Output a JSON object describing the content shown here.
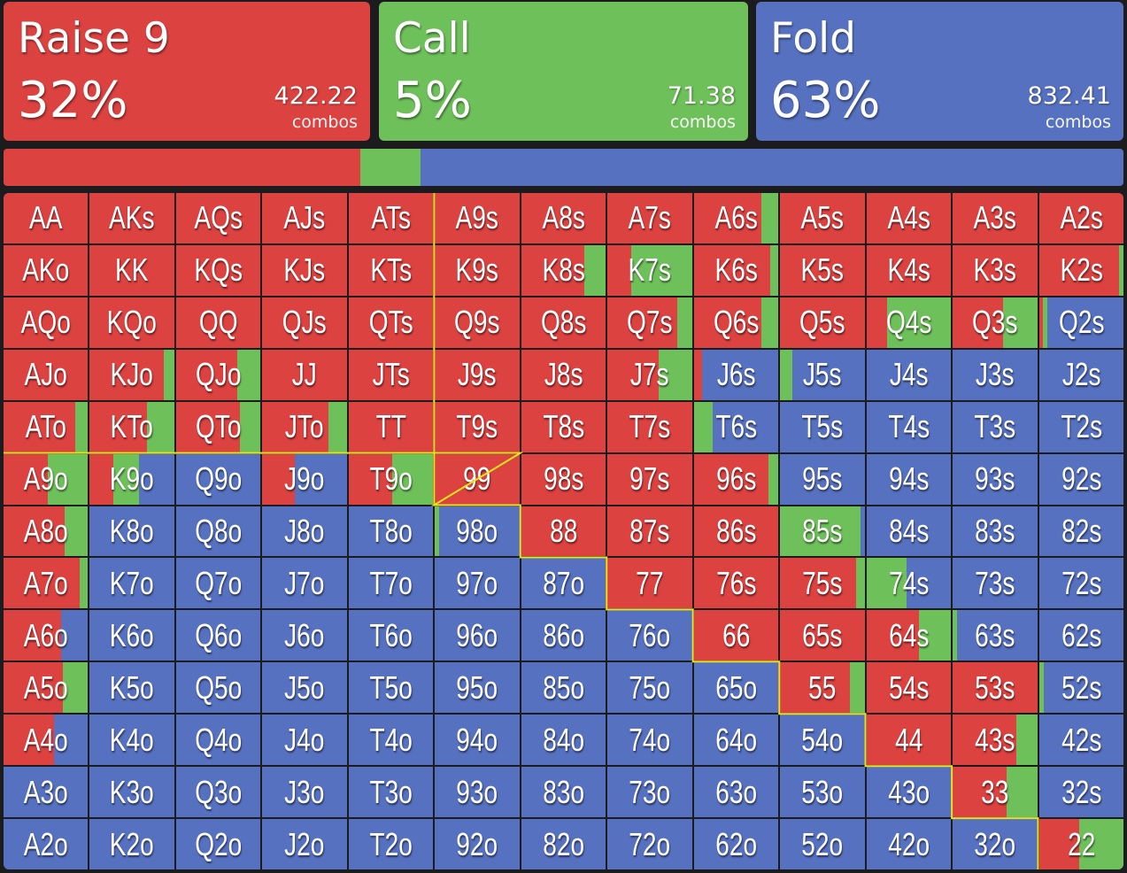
{
  "colors": {
    "raise": "#db4240",
    "call": "#6ec05a",
    "fold": "#5671c0",
    "outline": "#e9e41c",
    "background": "#1c1c1e"
  },
  "actions": [
    {
      "name": "Raise 9",
      "percent": "32%",
      "combos": "422.22",
      "combos_label": "combos",
      "share": 0.3183,
      "color": "#db4240"
    },
    {
      "name": "Call",
      "percent": "5%",
      "combos": "71.38",
      "combos_label": "combos",
      "share": 0.0538,
      "color": "#6ec05a"
    },
    {
      "name": "Fold",
      "percent": "63%",
      "combos": "832.41",
      "combos_label": "combos",
      "share": 0.6279,
      "color": "#5671c0"
    }
  ],
  "grid": [
    [
      {
        "h": "AA",
        "r": 1,
        "c": 0
      },
      {
        "h": "AKs",
        "r": 1,
        "c": 0
      },
      {
        "h": "AQs",
        "r": 1,
        "c": 0
      },
      {
        "h": "AJs",
        "r": 1,
        "c": 0
      },
      {
        "h": "ATs",
        "r": 1,
        "c": 0
      },
      {
        "h": "A9s",
        "r": 1,
        "c": 0
      },
      {
        "h": "A8s",
        "r": 1,
        "c": 0
      },
      {
        "h": "A7s",
        "r": 1,
        "c": 0
      },
      {
        "h": "A6s",
        "r": 0.8,
        "c": 0.2
      },
      {
        "h": "A5s",
        "r": 1,
        "c": 0
      },
      {
        "h": "A4s",
        "r": 1,
        "c": 0
      },
      {
        "h": "A3s",
        "r": 1,
        "c": 0
      },
      {
        "h": "A2s",
        "r": 1,
        "c": 0
      }
    ],
    [
      {
        "h": "AKo",
        "r": 1,
        "c": 0
      },
      {
        "h": "KK",
        "r": 1,
        "c": 0
      },
      {
        "h": "KQs",
        "r": 1,
        "c": 0
      },
      {
        "h": "KJs",
        "r": 1,
        "c": 0
      },
      {
        "h": "KTs",
        "r": 1,
        "c": 0
      },
      {
        "h": "K9s",
        "r": 1,
        "c": 0
      },
      {
        "h": "K8s",
        "r": 0.75,
        "c": 0.25
      },
      {
        "h": "K7s",
        "r": 0.28,
        "c": 0.72
      },
      {
        "h": "K6s",
        "r": 0.9,
        "c": 0.1
      },
      {
        "h": "K5s",
        "r": 1,
        "c": 0
      },
      {
        "h": "K4s",
        "r": 1,
        "c": 0
      },
      {
        "h": "K3s",
        "r": 1,
        "c": 0
      },
      {
        "h": "K2s",
        "r": 0.95,
        "c": 0.05
      }
    ],
    [
      {
        "h": "AQo",
        "r": 1,
        "c": 0
      },
      {
        "h": "KQo",
        "r": 1,
        "c": 0
      },
      {
        "h": "QQ",
        "r": 1,
        "c": 0
      },
      {
        "h": "QJs",
        "r": 1,
        "c": 0
      },
      {
        "h": "QTs",
        "r": 1,
        "c": 0
      },
      {
        "h": "Q9s",
        "r": 1,
        "c": 0
      },
      {
        "h": "Q8s",
        "r": 1,
        "c": 0
      },
      {
        "h": "Q7s",
        "r": 0.82,
        "c": 0.18
      },
      {
        "h": "Q6s",
        "r": 0.8,
        "c": 0.2
      },
      {
        "h": "Q5s",
        "r": 1,
        "c": 0
      },
      {
        "h": "Q4s",
        "r": 0.25,
        "c": 0.75
      },
      {
        "h": "Q3s",
        "r": 0.6,
        "c": 0.4
      },
      {
        "h": "Q2s",
        "r": 0.05,
        "c": 0.05
      }
    ],
    [
      {
        "h": "AJo",
        "r": 1,
        "c": 0
      },
      {
        "h": "KJo",
        "r": 0.88,
        "c": 0.12
      },
      {
        "h": "QJo",
        "r": 0.72,
        "c": 0.28
      },
      {
        "h": "JJ",
        "r": 1,
        "c": 0
      },
      {
        "h": "JTs",
        "r": 1,
        "c": 0
      },
      {
        "h": "J9s",
        "r": 1,
        "c": 0
      },
      {
        "h": "J8s",
        "r": 1,
        "c": 0
      },
      {
        "h": "J7s",
        "r": 0.6,
        "c": 0.4
      },
      {
        "h": "J6s",
        "r": 0.1,
        "c": 0.0
      },
      {
        "h": "J5s",
        "r": 0,
        "c": 0.15
      },
      {
        "h": "J4s",
        "r": 0,
        "c": 0
      },
      {
        "h": "J3s",
        "r": 0,
        "c": 0
      },
      {
        "h": "J2s",
        "r": 0,
        "c": 0
      }
    ],
    [
      {
        "h": "ATo",
        "r": 0.85,
        "c": 0.15
      },
      {
        "h": "KTo",
        "r": 0.68,
        "c": 0.32
      },
      {
        "h": "QTo",
        "r": 0.76,
        "c": 0.24
      },
      {
        "h": "JTo",
        "r": 0.78,
        "c": 0.22
      },
      {
        "h": "TT",
        "r": 1,
        "c": 0
      },
      {
        "h": "T9s",
        "r": 1,
        "c": 0
      },
      {
        "h": "T8s",
        "r": 1,
        "c": 0
      },
      {
        "h": "T7s",
        "r": 1,
        "c": 0
      },
      {
        "h": "T6s",
        "r": 0,
        "c": 0.22
      },
      {
        "h": "T5s",
        "r": 0,
        "c": 0
      },
      {
        "h": "T4s",
        "r": 0,
        "c": 0
      },
      {
        "h": "T3s",
        "r": 0,
        "c": 0
      },
      {
        "h": "T2s",
        "r": 0,
        "c": 0
      }
    ],
    [
      {
        "h": "A9o",
        "r": 0.52,
        "c": 0.48
      },
      {
        "h": "K9o",
        "r": 0.28,
        "c": 0.3
      },
      {
        "h": "Q9o",
        "r": 0,
        "c": 0
      },
      {
        "h": "J9o",
        "r": 0.38,
        "c": 0
      },
      {
        "h": "T9o",
        "r": 0.52,
        "c": 0.48
      },
      {
        "h": "99",
        "r": 1,
        "c": 0
      },
      {
        "h": "98s",
        "r": 1,
        "c": 0
      },
      {
        "h": "97s",
        "r": 1,
        "c": 0
      },
      {
        "h": "96s",
        "r": 0.88,
        "c": 0.12
      },
      {
        "h": "95s",
        "r": 0,
        "c": 0
      },
      {
        "h": "94s",
        "r": 0,
        "c": 0
      },
      {
        "h": "93s",
        "r": 0,
        "c": 0
      },
      {
        "h": "92s",
        "r": 0,
        "c": 0
      }
    ],
    [
      {
        "h": "A8o",
        "r": 0.72,
        "c": 0.28
      },
      {
        "h": "K8o",
        "r": 0,
        "c": 0
      },
      {
        "h": "Q8o",
        "r": 0,
        "c": 0
      },
      {
        "h": "J8o",
        "r": 0,
        "c": 0
      },
      {
        "h": "T8o",
        "r": 0,
        "c": 0
      },
      {
        "h": "98o",
        "r": 0,
        "c": 0.05
      },
      {
        "h": "88",
        "r": 1,
        "c": 0
      },
      {
        "h": "87s",
        "r": 1,
        "c": 0
      },
      {
        "h": "86s",
        "r": 1,
        "c": 0
      },
      {
        "h": "85s",
        "r": 0,
        "c": 0.95
      },
      {
        "h": "84s",
        "r": 0,
        "c": 0
      },
      {
        "h": "83s",
        "r": 0,
        "c": 0
      },
      {
        "h": "82s",
        "r": 0,
        "c": 0
      }
    ],
    [
      {
        "h": "A7o",
        "r": 0.9,
        "c": 0.1
      },
      {
        "h": "K7o",
        "r": 0,
        "c": 0
      },
      {
        "h": "Q7o",
        "r": 0,
        "c": 0
      },
      {
        "h": "J7o",
        "r": 0,
        "c": 0
      },
      {
        "h": "T7o",
        "r": 0,
        "c": 0
      },
      {
        "h": "97o",
        "r": 0,
        "c": 0
      },
      {
        "h": "87o",
        "r": 0,
        "c": 0
      },
      {
        "h": "77",
        "r": 1,
        "c": 0
      },
      {
        "h": "76s",
        "r": 1,
        "c": 0
      },
      {
        "h": "75s",
        "r": 0.9,
        "c": 0.1
      },
      {
        "h": "74s",
        "r": 0,
        "c": 0.48
      },
      {
        "h": "73s",
        "r": 0,
        "c": 0
      },
      {
        "h": "72s",
        "r": 0,
        "c": 0
      }
    ],
    [
      {
        "h": "A6o",
        "r": 0.68,
        "c": 0
      },
      {
        "h": "K6o",
        "r": 0,
        "c": 0
      },
      {
        "h": "Q6o",
        "r": 0,
        "c": 0
      },
      {
        "h": "J6o",
        "r": 0,
        "c": 0
      },
      {
        "h": "T6o",
        "r": 0,
        "c": 0
      },
      {
        "h": "96o",
        "r": 0,
        "c": 0
      },
      {
        "h": "86o",
        "r": 0,
        "c": 0
      },
      {
        "h": "76o",
        "r": 0,
        "c": 0
      },
      {
        "h": "66",
        "r": 1,
        "c": 0
      },
      {
        "h": "65s",
        "r": 1,
        "c": 0
      },
      {
        "h": "64s",
        "r": 0.62,
        "c": 0.38
      },
      {
        "h": "63s",
        "r": 0,
        "c": 0.05
      },
      {
        "h": "62s",
        "r": 0,
        "c": 0
      }
    ],
    [
      {
        "h": "A5o",
        "r": 0.7,
        "c": 0.3
      },
      {
        "h": "K5o",
        "r": 0,
        "c": 0
      },
      {
        "h": "Q5o",
        "r": 0,
        "c": 0
      },
      {
        "h": "J5o",
        "r": 0,
        "c": 0
      },
      {
        "h": "T5o",
        "r": 0,
        "c": 0
      },
      {
        "h": "95o",
        "r": 0,
        "c": 0
      },
      {
        "h": "85o",
        "r": 0,
        "c": 0
      },
      {
        "h": "75o",
        "r": 0,
        "c": 0
      },
      {
        "h": "65o",
        "r": 0,
        "c": 0
      },
      {
        "h": "55",
        "r": 0.83,
        "c": 0.17
      },
      {
        "h": "54s",
        "r": 1,
        "c": 0
      },
      {
        "h": "53s",
        "r": 1,
        "c": 0
      },
      {
        "h": "52s",
        "r": 0,
        "c": 0.06
      }
    ],
    [
      {
        "h": "A4o",
        "r": 0.6,
        "c": 0
      },
      {
        "h": "K4o",
        "r": 0,
        "c": 0
      },
      {
        "h": "Q4o",
        "r": 0,
        "c": 0
      },
      {
        "h": "J4o",
        "r": 0,
        "c": 0
      },
      {
        "h": "T4o",
        "r": 0,
        "c": 0
      },
      {
        "h": "94o",
        "r": 0,
        "c": 0
      },
      {
        "h": "84o",
        "r": 0,
        "c": 0
      },
      {
        "h": "74o",
        "r": 0,
        "c": 0
      },
      {
        "h": "64o",
        "r": 0,
        "c": 0
      },
      {
        "h": "54o",
        "r": 0,
        "c": 0
      },
      {
        "h": "44",
        "r": 1,
        "c": 0
      },
      {
        "h": "43s",
        "r": 0.75,
        "c": 0.25
      },
      {
        "h": "42s",
        "r": 0,
        "c": 0
      }
    ],
    [
      {
        "h": "A3o",
        "r": 0,
        "c": 0
      },
      {
        "h": "K3o",
        "r": 0,
        "c": 0
      },
      {
        "h": "Q3o",
        "r": 0,
        "c": 0
      },
      {
        "h": "J3o",
        "r": 0,
        "c": 0
      },
      {
        "h": "T3o",
        "r": 0,
        "c": 0
      },
      {
        "h": "93o",
        "r": 0,
        "c": 0
      },
      {
        "h": "83o",
        "r": 0,
        "c": 0
      },
      {
        "h": "73o",
        "r": 0,
        "c": 0
      },
      {
        "h": "63o",
        "r": 0,
        "c": 0
      },
      {
        "h": "53o",
        "r": 0,
        "c": 0
      },
      {
        "h": "43o",
        "r": 0,
        "c": 0
      },
      {
        "h": "33",
        "r": 0.64,
        "c": 0.36
      },
      {
        "h": "32s",
        "r": 0,
        "c": 0
      }
    ],
    [
      {
        "h": "A2o",
        "r": 0,
        "c": 0
      },
      {
        "h": "K2o",
        "r": 0,
        "c": 0
      },
      {
        "h": "Q2o",
        "r": 0,
        "c": 0
      },
      {
        "h": "J2o",
        "r": 0,
        "c": 0
      },
      {
        "h": "T2o",
        "r": 0,
        "c": 0
      },
      {
        "h": "92o",
        "r": 0,
        "c": 0
      },
      {
        "h": "82o",
        "r": 0,
        "c": 0
      },
      {
        "h": "72o",
        "r": 0,
        "c": 0
      },
      {
        "h": "62o",
        "r": 0,
        "c": 0
      },
      {
        "h": "52o",
        "r": 0,
        "c": 0
      },
      {
        "h": "42o",
        "r": 0,
        "c": 0
      },
      {
        "h": "32o",
        "r": 0,
        "c": 0
      },
      {
        "h": "22",
        "r": 0.48,
        "c": 0.52
      }
    ]
  ]
}
